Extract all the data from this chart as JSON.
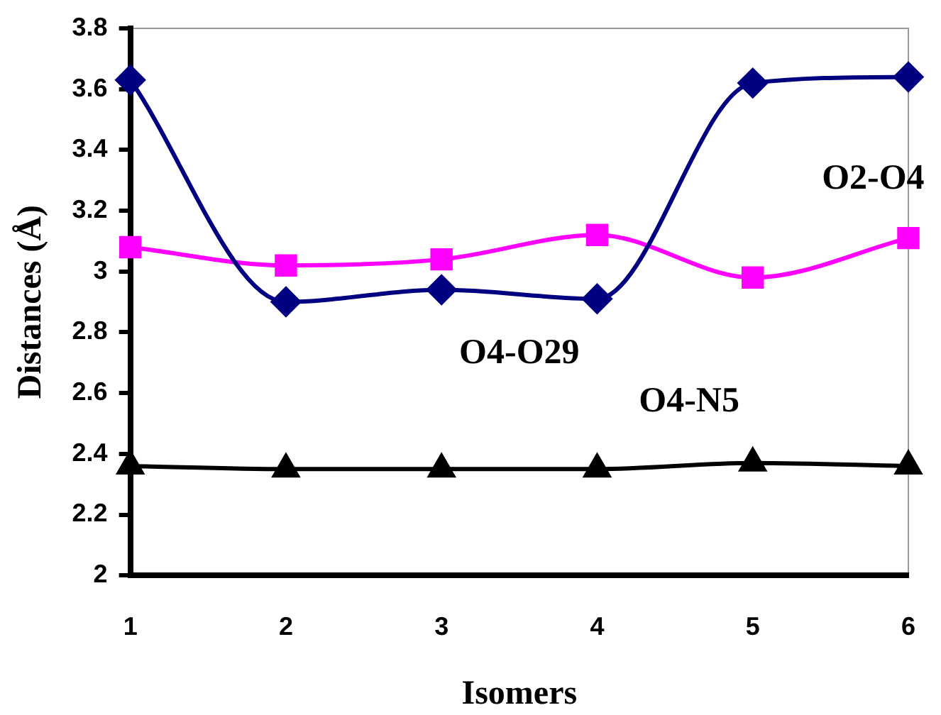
{
  "chart_data": {
    "type": "line",
    "xlabel": "Isomers",
    "ylabel": "Distances (Å)",
    "x": [
      1,
      2,
      3,
      4,
      5,
      6
    ],
    "xlim": [
      1,
      6
    ],
    "xticks": [
      1,
      2,
      3,
      4,
      5,
      6
    ],
    "ylim": [
      2,
      3.8
    ],
    "yticks": [
      2,
      2.2,
      2.4,
      2.6,
      2.8,
      3,
      3.2,
      3.4,
      3.6,
      3.8
    ],
    "grid": false,
    "legend": false,
    "series": [
      {
        "name": "O4-O29",
        "color": "#000080",
        "marker": "diamond",
        "values": [
          3.63,
          2.9,
          2.94,
          2.91,
          3.62,
          3.64
        ]
      },
      {
        "name": "O2-O4",
        "color": "#ff00ff",
        "marker": "square",
        "values": [
          3.08,
          3.02,
          3.04,
          3.12,
          2.98,
          3.11
        ]
      },
      {
        "name": "O4-N5",
        "color": "#000000",
        "marker": "triangle",
        "values": [
          2.36,
          2.35,
          2.35,
          2.35,
          2.37,
          2.36
        ]
      }
    ]
  }
}
